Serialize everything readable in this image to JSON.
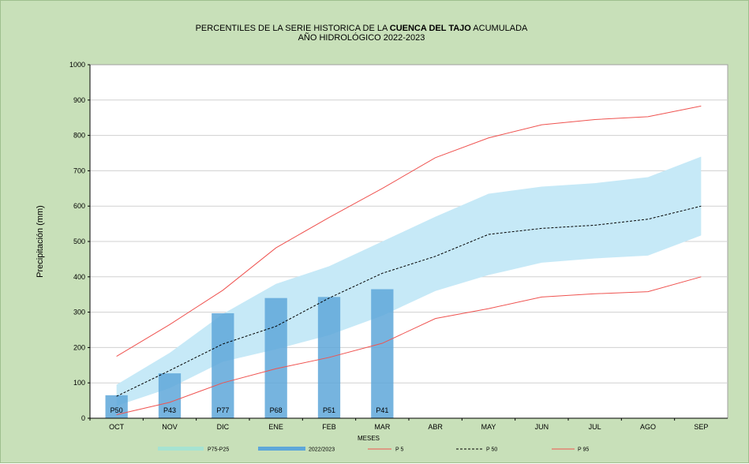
{
  "chart_data": {
    "type": "bar",
    "title": {
      "line1_prefix": "PERCENTILES DE LA SERIE HISTORICA DE LA ",
      "line1_bold": "CUENCA DEL TAJO",
      "line1_suffix": " ACUMULADA",
      "line2": "AÑO HIDROLÓGICO 2022-2023"
    },
    "xlabel": "MESES",
    "ylabel": "Precipitación (mm)",
    "ylim": [
      0,
      1000
    ],
    "yticks": [
      0,
      100,
      200,
      300,
      400,
      500,
      600,
      700,
      800,
      900,
      1000
    ],
    "grid": true,
    "categories": [
      "OCT",
      "NOV",
      "DIC",
      "ENE",
      "FEB",
      "MAR",
      "ABR",
      "MAY",
      "JUN",
      "JUL",
      "AGO",
      "SEP"
    ],
    "band": {
      "name": "P75-P25",
      "upper": [
        95,
        185,
        295,
        380,
        430,
        500,
        570,
        635,
        655,
        665,
        682,
        740
      ],
      "lower": [
        35,
        85,
        160,
        195,
        235,
        290,
        360,
        405,
        440,
        452,
        460,
        517
      ]
    },
    "bars": {
      "name": "2022/2023",
      "values": [
        65,
        127,
        297,
        340,
        343,
        365
      ],
      "labels": [
        "P50",
        "P43",
        "P77",
        "P68",
        "P51",
        "P41"
      ]
    },
    "series": [
      {
        "name": "P 5",
        "values": [
          10,
          45,
          100,
          140,
          172,
          212,
          282,
          310,
          343,
          352,
          358,
          400
        ]
      },
      {
        "name": "P 50",
        "values": [
          62,
          135,
          210,
          260,
          340,
          410,
          458,
          520,
          537,
          546,
          563,
          600
        ]
      },
      {
        "name": "P 95",
        "values": [
          175,
          265,
          362,
          482,
          568,
          650,
          737,
          793,
          830,
          845,
          853,
          883
        ]
      }
    ],
    "legend": {
      "placement": "bottom",
      "items": [
        "P75-P25",
        "2022/2023",
        "P 5",
        "P 50",
        "P 95"
      ]
    },
    "colors": {
      "background": "#c8e0b9",
      "plot_bg": "#ffffff",
      "band": "#c6e9f7",
      "band_legend": "#a6e3d2",
      "bar": "#5ea7d9",
      "p5": "#ef5350",
      "p50": "#000000",
      "p95": "#ef5350",
      "grid": "#d0d0d0"
    }
  }
}
